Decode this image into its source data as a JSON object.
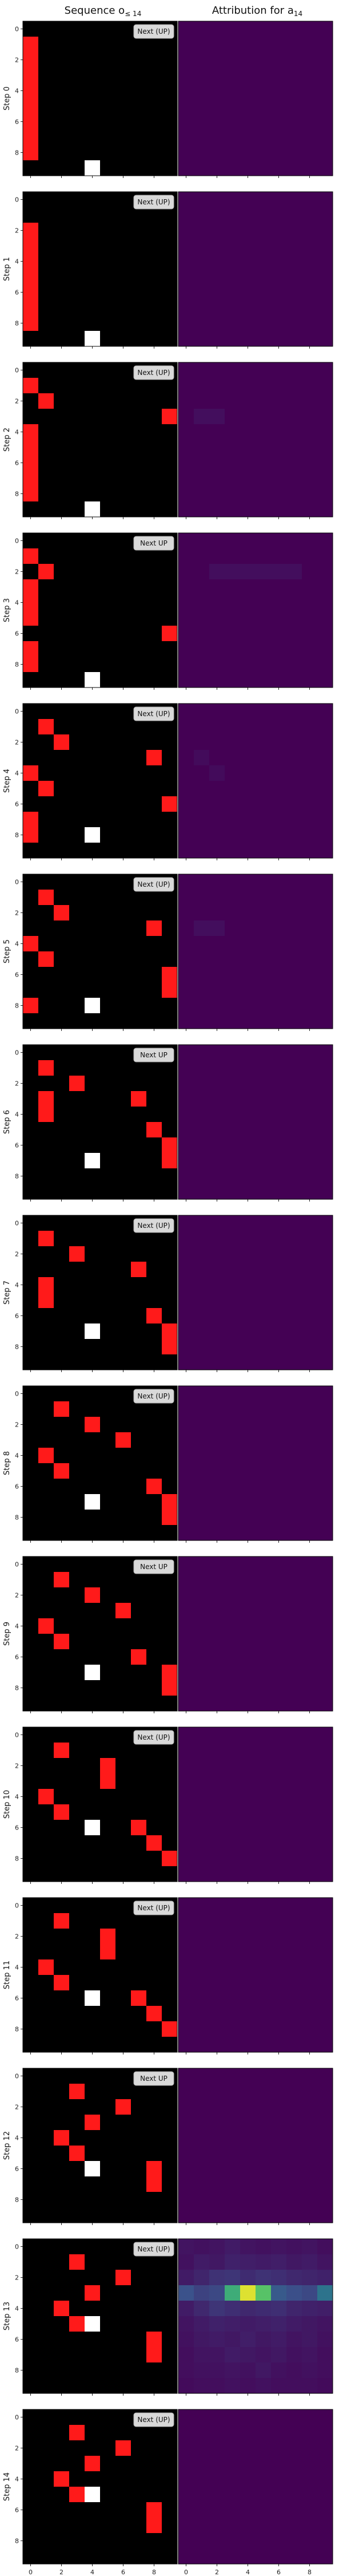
{
  "columns": {
    "left_title": "Sequence o",
    "left_title_sub": "≤ 14",
    "right_title": "Attribution for a",
    "right_title_sub": "14"
  },
  "chart_data": {
    "type": "heatmap",
    "grid_size": 10,
    "tick_labels": [
      "0",
      "2",
      "4",
      "6",
      "8"
    ],
    "panels": [
      {
        "label": "Step 0",
        "status": "Next (UP)",
        "red": [
          [
            1,
            0
          ],
          [
            2,
            0
          ],
          [
            3,
            0
          ],
          [
            4,
            0
          ],
          [
            5,
            0
          ],
          [
            6,
            0
          ],
          [
            7,
            0
          ],
          [
            8,
            0
          ]
        ],
        "white": [
          [
            9,
            4
          ]
        ]
      },
      {
        "label": "Step 1",
        "status": "Next (UP)",
        "red": [
          [
            2,
            0
          ],
          [
            3,
            0
          ],
          [
            4,
            0
          ],
          [
            5,
            0
          ],
          [
            6,
            0
          ],
          [
            7,
            0
          ],
          [
            8,
            0
          ]
        ],
        "white": [
          [
            9,
            4
          ]
        ]
      },
      {
        "label": "Step 2",
        "status": "Next (UP)",
        "red": [
          [
            1,
            0
          ],
          [
            2,
            1
          ],
          [
            3,
            9
          ],
          [
            4,
            0
          ],
          [
            5,
            0
          ],
          [
            6,
            0
          ],
          [
            7,
            0
          ],
          [
            8,
            0
          ]
        ],
        "white": [
          [
            9,
            4
          ]
        ]
      },
      {
        "label": "Step 3",
        "status": "Next UP",
        "red": [
          [
            1,
            0
          ],
          [
            2,
            1
          ],
          [
            3,
            0
          ],
          [
            4,
            0
          ],
          [
            5,
            0
          ],
          [
            6,
            9
          ],
          [
            7,
            0
          ],
          [
            8,
            0
          ]
        ],
        "white": [
          [
            9,
            4
          ]
        ]
      },
      {
        "label": "Step 4",
        "status": "Next (UP)",
        "red": [
          [
            1,
            1
          ],
          [
            2,
            2
          ],
          [
            3,
            8
          ],
          [
            4,
            0
          ],
          [
            5,
            1
          ],
          [
            6,
            9
          ],
          [
            7,
            0
          ],
          [
            8,
            0
          ]
        ],
        "white": [
          [
            8,
            4
          ]
        ]
      },
      {
        "label": "Step 5",
        "status": "Next (UP)",
        "red": [
          [
            1,
            1
          ],
          [
            2,
            2
          ],
          [
            3,
            8
          ],
          [
            4,
            0
          ],
          [
            5,
            1
          ],
          [
            6,
            9
          ],
          [
            7,
            9
          ],
          [
            8,
            0
          ]
        ],
        "white": [
          [
            8,
            4
          ]
        ]
      },
      {
        "label": "Step 6",
        "status": "Next UP",
        "red": [
          [
            1,
            1
          ],
          [
            2,
            3
          ],
          [
            3,
            1
          ],
          [
            3,
            7
          ],
          [
            4,
            1
          ],
          [
            5,
            8
          ],
          [
            6,
            9
          ],
          [
            7,
            9
          ]
        ],
        "white": [
          [
            7,
            4
          ]
        ]
      },
      {
        "label": "Step 7",
        "status": "Next (UP)",
        "red": [
          [
            1,
            1
          ],
          [
            2,
            3
          ],
          [
            3,
            7
          ],
          [
            4,
            1
          ],
          [
            5,
            1
          ],
          [
            6,
            8
          ],
          [
            7,
            9
          ],
          [
            8,
            9
          ]
        ],
        "white": [
          [
            7,
            4
          ]
        ]
      },
      {
        "label": "Step 8",
        "status": "Next (UP)",
        "red": [
          [
            1,
            2
          ],
          [
            2,
            4
          ],
          [
            3,
            6
          ],
          [
            4,
            1
          ],
          [
            5,
            2
          ],
          [
            6,
            8
          ],
          [
            7,
            9
          ],
          [
            8,
            9
          ]
        ],
        "white": [
          [
            7,
            4
          ]
        ]
      },
      {
        "label": "Step 9",
        "status": "Next UP",
        "red": [
          [
            1,
            2
          ],
          [
            2,
            4
          ],
          [
            3,
            6
          ],
          [
            4,
            1
          ],
          [
            5,
            2
          ],
          [
            6,
            7
          ],
          [
            7,
            9
          ],
          [
            8,
            9
          ]
        ],
        "white": [
          [
            7,
            4
          ]
        ]
      },
      {
        "label": "Step 10",
        "status": "Next (UP)",
        "red": [
          [
            1,
            2
          ],
          [
            2,
            5
          ],
          [
            3,
            5
          ],
          [
            4,
            1
          ],
          [
            5,
            2
          ],
          [
            6,
            7
          ],
          [
            7,
            8
          ],
          [
            8,
            9
          ]
        ],
        "white": [
          [
            6,
            4
          ]
        ]
      },
      {
        "label": "Step 11",
        "status": "Next (UP)",
        "red": [
          [
            1,
            2
          ],
          [
            2,
            5
          ],
          [
            3,
            5
          ],
          [
            4,
            1
          ],
          [
            5,
            2
          ],
          [
            6,
            7
          ],
          [
            7,
            8
          ],
          [
            8,
            9
          ]
        ],
        "white": [
          [
            6,
            4
          ]
        ]
      },
      {
        "label": "Step 12",
        "status": "Next UP",
        "red": [
          [
            1,
            3
          ],
          [
            2,
            6
          ],
          [
            3,
            4
          ],
          [
            4,
            2
          ],
          [
            5,
            3
          ],
          [
            6,
            8
          ],
          [
            7,
            8
          ]
        ],
        "white": [
          [
            6,
            4
          ]
        ]
      },
      {
        "label": "Step 13",
        "status": "Next (UP)",
        "red": [
          [
            1,
            3
          ],
          [
            2,
            6
          ],
          [
            3,
            4
          ],
          [
            4,
            2
          ],
          [
            5,
            3
          ],
          [
            6,
            8
          ],
          [
            7,
            8
          ]
        ],
        "white": [
          [
            5,
            4
          ]
        ]
      },
      {
        "label": "Step 14",
        "status": "Next (UP)",
        "red": [
          [
            1,
            3
          ],
          [
            2,
            6
          ],
          [
            3,
            4
          ],
          [
            4,
            2
          ],
          [
            5,
            3
          ],
          [
            6,
            8
          ],
          [
            7,
            8
          ]
        ],
        "white": [
          [
            5,
            4
          ]
        ]
      }
    ],
    "attribution": {
      "base_color": "#440154",
      "colormap": "viridis",
      "panels": [
        {
          "cells": []
        },
        {
          "cells": []
        },
        {
          "cells": [
            [
              3,
              1,
              0.04
            ],
            [
              3,
              2,
              0.04
            ]
          ]
        },
        {
          "cells": [
            [
              2,
              2,
              0.04
            ],
            [
              2,
              3,
              0.04
            ],
            [
              2,
              4,
              0.04
            ],
            [
              2,
              5,
              0.04
            ],
            [
              2,
              6,
              0.04
            ],
            [
              2,
              7,
              0.04
            ]
          ]
        },
        {
          "cells": [
            [
              3,
              1,
              0.03
            ],
            [
              4,
              2,
              0.03
            ]
          ]
        },
        {
          "cells": [
            [
              3,
              1,
              0.04
            ],
            [
              3,
              2,
              0.04
            ]
          ]
        },
        {
          "cells": []
        },
        {
          "cells": []
        },
        {
          "cells": []
        },
        {
          "cells": []
        },
        {
          "cells": []
        },
        {
          "cells": []
        },
        {
          "cells": []
        },
        {
          "cells": [
            [
              0,
              0,
              0.06
            ],
            [
              0,
              1,
              0.05
            ],
            [
              0,
              2,
              0.06
            ],
            [
              0,
              3,
              0.08
            ],
            [
              0,
              4,
              0.06
            ],
            [
              0,
              5,
              0.05
            ],
            [
              0,
              6,
              0.06
            ],
            [
              0,
              7,
              0.05
            ],
            [
              0,
              8,
              0.06
            ],
            [
              0,
              9,
              0.04
            ],
            [
              1,
              0,
              0.05
            ],
            [
              1,
              1,
              0.08
            ],
            [
              1,
              2,
              0.07
            ],
            [
              1,
              3,
              0.1
            ],
            [
              1,
              4,
              0.09
            ],
            [
              1,
              5,
              0.08
            ],
            [
              1,
              6,
              0.09
            ],
            [
              1,
              7,
              0.07
            ],
            [
              1,
              8,
              0.08
            ],
            [
              1,
              9,
              0.06
            ],
            [
              2,
              0,
              0.08
            ],
            [
              2,
              1,
              0.11
            ],
            [
              2,
              2,
              0.15
            ],
            [
              2,
              3,
              0.16
            ],
            [
              2,
              4,
              0.13
            ],
            [
              2,
              5,
              0.15
            ],
            [
              2,
              6,
              0.14
            ],
            [
              2,
              7,
              0.12
            ],
            [
              2,
              8,
              0.11
            ],
            [
              2,
              9,
              0.1
            ],
            [
              3,
              0,
              0.25
            ],
            [
              3,
              1,
              0.2
            ],
            [
              3,
              2,
              0.22
            ],
            [
              3,
              3,
              0.62
            ],
            [
              3,
              4,
              0.95
            ],
            [
              3,
              5,
              0.72
            ],
            [
              3,
              6,
              0.28
            ],
            [
              3,
              7,
              0.24
            ],
            [
              3,
              8,
              0.22
            ],
            [
              3,
              9,
              0.38
            ],
            [
              4,
              0,
              0.08
            ],
            [
              4,
              1,
              0.12
            ],
            [
              4,
              2,
              0.16
            ],
            [
              4,
              3,
              0.14
            ],
            [
              4,
              4,
              0.12
            ],
            [
              4,
              5,
              0.13
            ],
            [
              4,
              6,
              0.14
            ],
            [
              4,
              7,
              0.11
            ],
            [
              4,
              8,
              0.1
            ],
            [
              4,
              9,
              0.09
            ],
            [
              5,
              0,
              0.06
            ],
            [
              5,
              1,
              0.08
            ],
            [
              5,
              2,
              0.1
            ],
            [
              5,
              3,
              0.09
            ],
            [
              5,
              4,
              0.08
            ],
            [
              5,
              5,
              0.09
            ],
            [
              5,
              6,
              0.1
            ],
            [
              5,
              7,
              0.08
            ],
            [
              5,
              8,
              0.07
            ],
            [
              5,
              9,
              0.06
            ],
            [
              6,
              0,
              0.05
            ],
            [
              6,
              1,
              0.07
            ],
            [
              6,
              2,
              0.08
            ],
            [
              6,
              3,
              0.07
            ],
            [
              6,
              4,
              0.09
            ],
            [
              6,
              5,
              0.07
            ],
            [
              6,
              6,
              0.08
            ],
            [
              6,
              7,
              0.06
            ],
            [
              6,
              8,
              0.07
            ],
            [
              6,
              9,
              0.05
            ],
            [
              7,
              0,
              0.04
            ],
            [
              7,
              1,
              0.06
            ],
            [
              7,
              2,
              0.06
            ],
            [
              7,
              3,
              0.08
            ],
            [
              7,
              4,
              0.07
            ],
            [
              7,
              5,
              0.06
            ],
            [
              7,
              6,
              0.07
            ],
            [
              7,
              7,
              0.05
            ],
            [
              7,
              8,
              0.06
            ],
            [
              7,
              9,
              0.04
            ],
            [
              8,
              0,
              0.04
            ],
            [
              8,
              1,
              0.05
            ],
            [
              8,
              2,
              0.05
            ],
            [
              8,
              3,
              0.06
            ],
            [
              8,
              4,
              0.05
            ],
            [
              8,
              5,
              0.07
            ],
            [
              8,
              6,
              0.05
            ],
            [
              8,
              7,
              0.04
            ],
            [
              8,
              8,
              0.05
            ],
            [
              8,
              9,
              0.04
            ],
            [
              9,
              0,
              0.03
            ],
            [
              9,
              1,
              0.04
            ],
            [
              9,
              2,
              0.04
            ],
            [
              9,
              3,
              0.05
            ],
            [
              9,
              4,
              0.04
            ],
            [
              9,
              5,
              0.05
            ],
            [
              9,
              6,
              0.04
            ],
            [
              9,
              7,
              0.04
            ],
            [
              9,
              8,
              0.04
            ],
            [
              9,
              9,
              0.03
            ]
          ]
        },
        {
          "cells": []
        }
      ]
    }
  }
}
